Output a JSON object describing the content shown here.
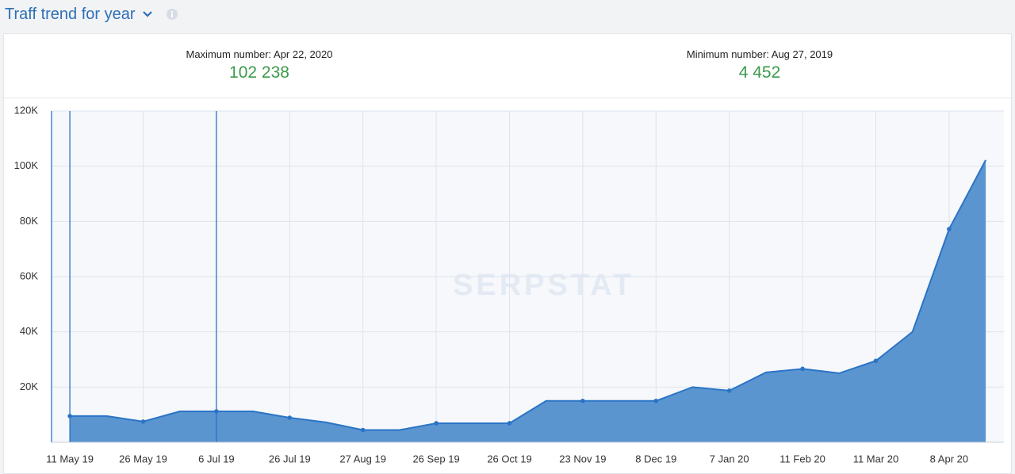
{
  "header": {
    "title": "Traff trend for year"
  },
  "stats": [
    {
      "label": "Maximum number: Apr 22, 2020",
      "value": "102 238"
    },
    {
      "label": "Minimum number: Aug 27, 2019",
      "value": "4 452"
    }
  ],
  "chart_data": {
    "type": "area",
    "watermark": "SERPSTAT",
    "categories": [
      "11 May 19",
      null,
      "26 May 19",
      null,
      "6 Jul 19",
      null,
      "26 Jul 19",
      null,
      "27 Aug 19",
      null,
      "26 Sep 19",
      null,
      "26 Oct 19",
      null,
      "23 Nov 19",
      null,
      "8 Dec 19",
      null,
      "7 Jan 20",
      null,
      "11 Feb 20",
      null,
      "11 Mar 20",
      null,
      "8 Apr 20",
      null
    ],
    "values": [
      9500,
      9500,
      7500,
      11200,
      11200,
      11200,
      8900,
      7200,
      4452,
      4452,
      6900,
      6900,
      6900,
      15000,
      15000,
      15000,
      15000,
      20000,
      18700,
      25300,
      26600,
      25000,
      29500,
      40000,
      77200,
      102238
    ],
    "color": "#2a74c6",
    "fill": "#5b95d0",
    "event_indices": [
      0,
      4
    ],
    "ylim": [
      0,
      120000
    ],
    "yticks": [
      {
        "value": 20000,
        "label": "20K"
      },
      {
        "value": 40000,
        "label": "40K"
      },
      {
        "value": 60000,
        "label": "60K"
      },
      {
        "value": 80000,
        "label": "80K"
      },
      {
        "value": 100000,
        "label": "100K"
      },
      {
        "value": 120000,
        "label": "120K"
      }
    ],
    "grid": true
  }
}
